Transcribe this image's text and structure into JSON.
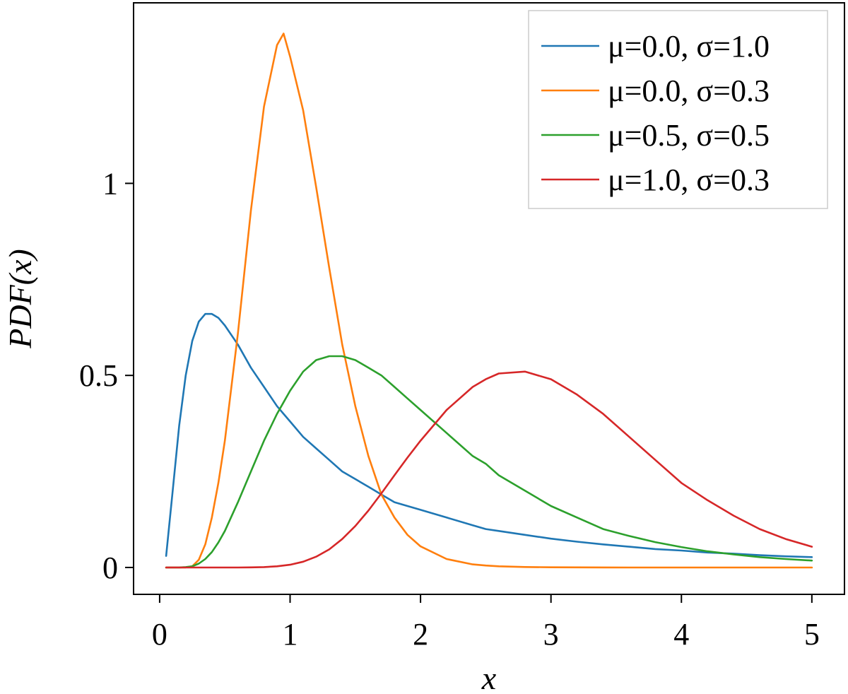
{
  "chart_data": {
    "type": "line",
    "title": "",
    "xlabel": "x",
    "ylabel": "PDF(x)",
    "xlim": [
      -0.2,
      5.25
    ],
    "ylim": [
      -0.07,
      1.47
    ],
    "xticks": [
      0,
      1,
      2,
      3,
      4,
      5
    ],
    "xtick_labels": [
      "0",
      "1",
      "2",
      "3",
      "4",
      "5"
    ],
    "yticks": [
      0,
      0.5,
      1
    ],
    "ytick_labels": [
      "0",
      "0.5",
      "1"
    ],
    "grid": false,
    "legend_position": "top-right",
    "x": [
      0.05,
      0.1,
      0.15,
      0.2,
      0.25,
      0.3,
      0.35,
      0.4,
      0.45,
      0.5,
      0.6,
      0.7,
      0.8,
      0.9,
      0.95,
      1.0,
      1.1,
      1.2,
      1.3,
      1.4,
      1.5,
      1.6,
      1.7,
      1.8,
      1.9,
      2.0,
      2.2,
      2.4,
      2.5,
      2.6,
      2.8,
      3.0,
      3.2,
      3.4,
      3.6,
      3.8,
      4.0,
      4.2,
      4.4,
      4.6,
      4.8,
      5.0
    ],
    "series": [
      {
        "name": "μ=0.0, σ=1.0",
        "color": "#1f77b4",
        "values": [
          0.03,
          0.2,
          0.37,
          0.5,
          0.59,
          0.64,
          0.66,
          0.66,
          0.65,
          0.63,
          0.58,
          0.52,
          0.47,
          0.42,
          0.4,
          0.38,
          0.34,
          0.31,
          0.28,
          0.25,
          0.23,
          0.21,
          0.19,
          0.17,
          0.16,
          0.15,
          0.13,
          0.11,
          0.1,
          0.095,
          0.085,
          0.075,
          0.067,
          0.06,
          0.054,
          0.048,
          0.044,
          0.039,
          0.036,
          0.032,
          0.029,
          0.027
        ]
      },
      {
        "name": "μ=0.0, σ=0.3",
        "color": "#ff7f0e",
        "values": [
          0,
          0,
          0,
          0.0001,
          0.003,
          0.02,
          0.06,
          0.13,
          0.22,
          0.33,
          0.61,
          0.93,
          1.2,
          1.36,
          1.39,
          1.33,
          1.19,
          0.99,
          0.78,
          0.58,
          0.42,
          0.29,
          0.19,
          0.13,
          0.085,
          0.055,
          0.022,
          0.008,
          0.005,
          0.003,
          0.0012,
          0.0005,
          0.0002,
          0.0001,
          0,
          0,
          0,
          0,
          0,
          0,
          0,
          0
        ]
      },
      {
        "name": "μ=0.5, σ=0.5",
        "color": "#2ca02c",
        "values": [
          0,
          0,
          0,
          0.001,
          0.003,
          0.01,
          0.022,
          0.04,
          0.065,
          0.095,
          0.17,
          0.25,
          0.33,
          0.4,
          0.43,
          0.46,
          0.51,
          0.54,
          0.55,
          0.55,
          0.54,
          0.52,
          0.5,
          0.47,
          0.44,
          0.41,
          0.35,
          0.29,
          0.27,
          0.24,
          0.2,
          0.16,
          0.13,
          0.1,
          0.082,
          0.066,
          0.053,
          0.042,
          0.034,
          0.027,
          0.022,
          0.018
        ]
      },
      {
        "name": "μ=1.0, σ=0.3",
        "color": "#d62728",
        "values": [
          0,
          0,
          0,
          0,
          0,
          0,
          0,
          0,
          0,
          0,
          0,
          0.0003,
          0.001,
          0.003,
          0.005,
          0.007,
          0.015,
          0.028,
          0.047,
          0.074,
          0.108,
          0.148,
          0.193,
          0.24,
          0.286,
          0.33,
          0.41,
          0.47,
          0.49,
          0.505,
          0.51,
          0.49,
          0.45,
          0.4,
          0.34,
          0.28,
          0.22,
          0.175,
          0.135,
          0.1,
          0.074,
          0.054
        ]
      }
    ]
  }
}
